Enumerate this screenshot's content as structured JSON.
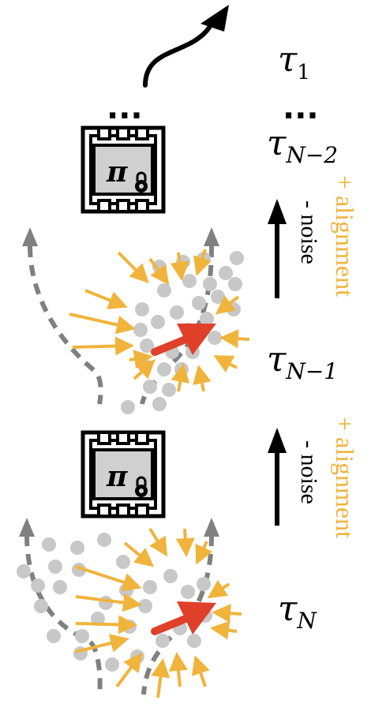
{
  "labels": {
    "tau_1": "τ",
    "tau_1_sub": "1",
    "tau_N2": "τ",
    "tau_N2_sub": "N−2",
    "tau_N1": "τ",
    "tau_N1_sub": "N−1",
    "tau_N": "τ",
    "tau_N_sub": "N",
    "ellipsis_left": "...",
    "ellipsis_right": "..."
  },
  "policy_chip": {
    "symbol": "π",
    "lock_icon": "lock-icon"
  },
  "step_annotations": {
    "alignment": "+ alignment",
    "noise": "- noise"
  },
  "colors": {
    "arrow_yellow": "#f0b43c",
    "center_arrow": "#e0402a",
    "particle": "#c8c8c8",
    "trajectory_dash": "#808080",
    "chip_fill": "#d0d0d0",
    "ink": "#000000"
  }
}
